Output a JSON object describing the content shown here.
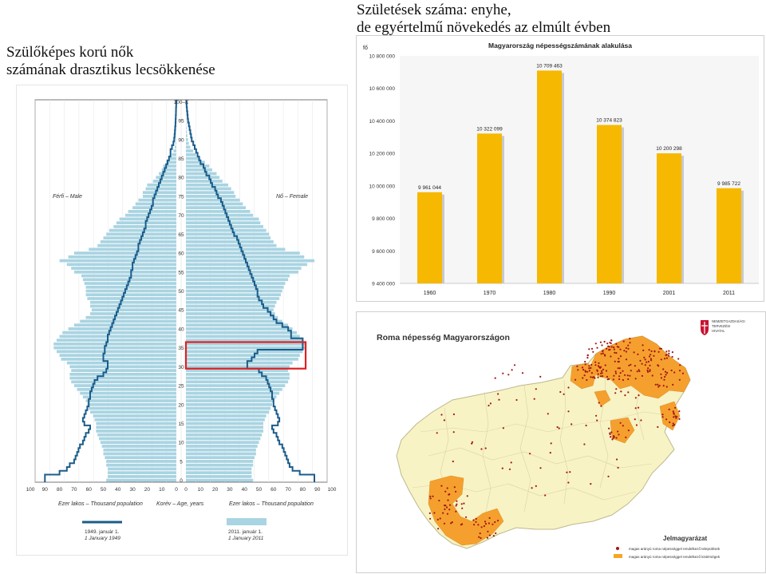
{
  "headings": {
    "left": [
      "Szülőképes korú nők",
      "számának drasztikus lecsökkenése"
    ],
    "right": [
      "Születések száma: enyhe,",
      "de egyértelmű növekedés az elmúlt évben"
    ]
  },
  "chart_data": [
    {
      "type": "bar",
      "orientation": "horizontal",
      "subtype": "population-pyramid",
      "title": "",
      "left_label": "Férfi – Male",
      "right_label": "Nő – Female",
      "xlabel_left": "Ezer lakos – Thousand population",
      "xlabel_center": "Korév – Age, years",
      "xlabel_right": "Ezer lakos – Thousand population",
      "x_ticks_left": [
        "100",
        "90",
        "80",
        "70",
        "60",
        "50",
        "40",
        "30",
        "20",
        "10",
        "0"
      ],
      "x_ticks_right": [
        "0",
        "10",
        "20",
        "30",
        "40",
        "50",
        "60",
        "70",
        "80",
        "90",
        "100"
      ],
      "xlim": [
        0,
        100
      ],
      "y_ticks": [
        "0",
        "5",
        "10",
        "15",
        "20",
        "25",
        "30",
        "35",
        "40",
        "45",
        "50",
        "55",
        "60",
        "65",
        "70",
        "75",
        "80",
        "85",
        "90",
        "95",
        "100–X"
      ],
      "ages": [
        0,
        1,
        2,
        3,
        4,
        5,
        6,
        7,
        8,
        9,
        10,
        11,
        12,
        13,
        14,
        15,
        16,
        17,
        18,
        19,
        20,
        21,
        22,
        23,
        24,
        25,
        26,
        27,
        28,
        29,
        30,
        31,
        32,
        33,
        34,
        35,
        36,
        37,
        38,
        39,
        40,
        41,
        42,
        43,
        44,
        45,
        46,
        47,
        48,
        49,
        50,
        51,
        52,
        53,
        54,
        55,
        56,
        57,
        58,
        59,
        60,
        61,
        62,
        63,
        64,
        65,
        66,
        67,
        68,
        69,
        70,
        71,
        72,
        73,
        74,
        75,
        76,
        77,
        78,
        79,
        80,
        81,
        82,
        83,
        84,
        85,
        86,
        87,
        88,
        89,
        90,
        91,
        92,
        93,
        94,
        95,
        96,
        97,
        98,
        99,
        100
      ],
      "series": [
        {
          "name": "2011. január 1. / 1 January 2011",
          "role": "male",
          "style": "bars",
          "color": "#a9d4e2",
          "values": [
            48,
            47,
            47,
            47,
            48,
            48,
            49,
            50,
            50,
            51,
            52,
            53,
            54,
            55,
            55,
            55,
            56,
            57,
            59,
            60,
            61,
            62,
            64,
            66,
            68,
            70,
            72,
            73,
            73,
            72,
            73,
            75,
            79,
            80,
            82,
            84,
            84,
            82,
            80,
            78,
            74,
            70,
            66,
            62,
            59,
            58,
            59,
            59,
            61,
            62,
            62,
            62,
            63,
            64,
            65,
            70,
            72,
            75,
            80,
            74,
            70,
            60,
            54,
            52,
            50,
            48,
            46,
            43,
            41,
            39,
            35,
            33,
            30,
            28,
            26,
            23,
            23,
            21,
            20,
            16,
            14,
            12,
            10,
            9,
            7,
            5,
            3,
            2,
            1,
            0.5,
            0.4,
            0.3,
            0.2,
            0.1,
            0.1,
            0.1,
            0.1,
            0,
            0,
            0,
            0
          ]
        },
        {
          "name": "2011. január 1. / 1 January 2011",
          "role": "female",
          "style": "bars",
          "color": "#a9d4e2",
          "values": [
            46,
            45,
            45,
            45,
            46,
            46,
            47,
            48,
            48,
            49,
            50,
            51,
            52,
            53,
            53,
            53,
            54,
            55,
            57,
            58,
            59,
            60,
            62,
            64,
            66,
            68,
            70,
            71,
            71,
            70,
            71,
            73,
            77,
            78,
            80,
            82,
            82,
            80,
            78,
            76,
            73,
            70,
            66,
            63,
            61,
            60,
            61,
            62,
            64,
            65,
            66,
            67,
            68,
            70,
            71,
            77,
            79,
            83,
            88,
            81,
            78,
            68,
            62,
            60,
            58,
            57,
            55,
            53,
            51,
            50,
            46,
            44,
            41,
            39,
            37,
            34,
            33,
            31,
            29,
            25,
            23,
            21,
            18,
            16,
            13,
            10,
            7,
            5,
            3,
            2,
            1.5,
            1,
            0.7,
            0.5,
            0.3,
            0.2,
            0.1,
            0.1,
            0,
            0,
            0
          ]
        },
        {
          "name": "1949. január 1. / 1 January 1949",
          "role": "male",
          "style": "line",
          "color": "#1b5c8a",
          "values": [
            90,
            90,
            80,
            75,
            73,
            70,
            69,
            68,
            67,
            66,
            64,
            63,
            62,
            60,
            59,
            63,
            64,
            63,
            62,
            61,
            60,
            60,
            59,
            59,
            58,
            57,
            56,
            54,
            50,
            48,
            47,
            47,
            50,
            50,
            49,
            49,
            48,
            47,
            47,
            46,
            45,
            44,
            43,
            42,
            41,
            40,
            39,
            38,
            37,
            36,
            35,
            34,
            33,
            32,
            31,
            31,
            30,
            30,
            29,
            28,
            27,
            26,
            26,
            25,
            24,
            23,
            22,
            21,
            21,
            20,
            19,
            18,
            17,
            16,
            16,
            15,
            14,
            13,
            12,
            11,
            10,
            9,
            8,
            7,
            6,
            5,
            4,
            4,
            3,
            2,
            1.5,
            1.2,
            1,
            0.8,
            0.6,
            0.5,
            0.4,
            0.3,
            0.2,
            0.1,
            0
          ]
        },
        {
          "name": "1949. január 1. / 1 January 1949",
          "role": "female",
          "style": "line",
          "color": "#1b5c8a",
          "values": [
            88,
            88,
            78,
            73,
            71,
            70,
            69,
            68,
            67,
            66,
            64,
            63,
            62,
            60,
            59,
            63,
            64,
            63,
            62,
            61,
            60,
            60,
            59,
            59,
            58,
            57,
            56,
            55,
            52,
            50,
            42,
            42,
            45,
            47,
            49,
            80,
            80,
            80,
            72,
            72,
            70,
            66,
            62,
            60,
            58,
            56,
            53,
            52,
            50,
            49,
            49,
            48,
            47,
            46,
            45,
            44,
            43,
            42,
            41,
            40,
            39,
            38,
            37,
            36,
            35,
            33,
            32,
            31,
            30,
            29,
            28,
            27,
            26,
            25,
            24,
            22,
            21,
            20,
            18,
            17,
            16,
            14,
            13,
            12,
            10,
            9,
            8,
            7,
            6,
            5,
            4,
            3.5,
            3,
            2.5,
            2,
            1.5,
            1.2,
            1,
            0.7,
            0.5,
            0.3
          ]
        }
      ],
      "legend": [
        "1949. január 1. / 1 January 1949",
        "2011. január 1. / 1 January 2011"
      ],
      "highlight": {
        "age_range": [
          30,
          36
        ],
        "color": "#e02020"
      }
    },
    {
      "type": "bar",
      "title": "Magyarország népességszámának alakulása",
      "ylabel": "fő",
      "categories": [
        "1960",
        "1970",
        "1980",
        "1990",
        "2001",
        "2011"
      ],
      "values": [
        9961044,
        10322099,
        10709463,
        10374823,
        10200298,
        9985722
      ],
      "data_labels": [
        "9 961 044",
        "10 322 099",
        "10 709 463",
        "10 374 823",
        "10 200 298",
        "9 985 722"
      ],
      "y_ticks": [
        "9 400 000",
        "9 600 000",
        "9 800 000",
        "10 000 000",
        "10 200 000",
        "10 400 000",
        "10 600 000",
        "10 800 000"
      ],
      "ylim": [
        9400000,
        10800000
      ],
      "bar_color": "#f6b800",
      "plot_background": "#f6f6f6"
    }
  ],
  "map": {
    "title": "Roma népesség Magyarországon",
    "legend_title": "Jelmagyarázat",
    "legend_items": [
      {
        "label": "magas arányú roma népességgel rendelkező települések",
        "color": "#c0392b",
        "shape": "dot"
      },
      {
        "label": "magas arányú roma népességgel rendelkező kistérségek",
        "color": "#f5a623",
        "shape": "rect"
      }
    ],
    "logo_text": [
      "NEMZETGAZDASÁGI",
      "TERVEZÉSI",
      "HIVATAL"
    ],
    "base_color": "#f8f3c4",
    "highlight_color": "#f5a02e",
    "dot_color": "#a31616"
  }
}
